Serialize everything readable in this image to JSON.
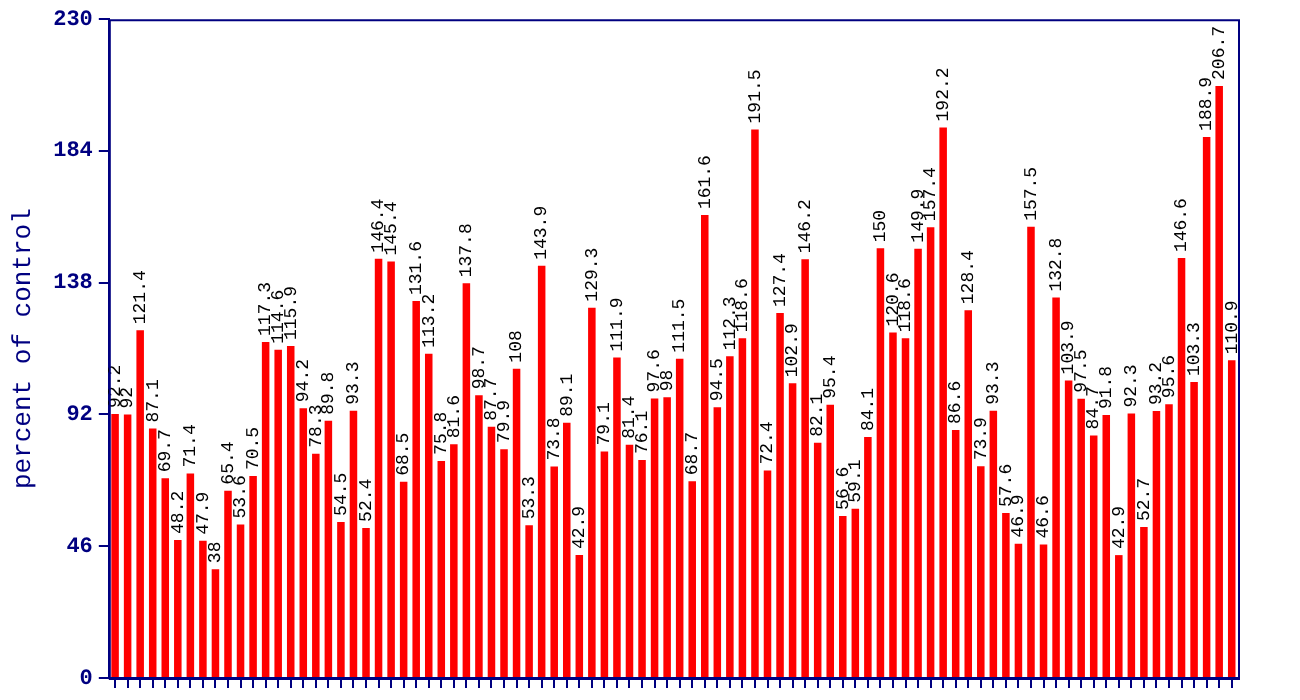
{
  "chart_data": {
    "type": "bar",
    "ylabel": "percent of control",
    "categories": [
      null,
      null,
      null,
      null,
      null,
      null,
      null,
      null,
      null,
      null,
      null,
      null,
      null,
      null,
      null,
      null,
      null,
      null,
      null,
      null,
      null,
      null,
      null,
      null,
      null,
      null,
      null,
      null,
      null,
      null,
      null,
      null,
      null,
      null,
      null,
      null,
      null,
      null,
      null,
      null,
      null,
      null,
      null,
      null,
      null,
      null,
      null,
      null,
      null,
      null,
      null,
      null,
      null,
      null,
      null,
      null,
      null,
      null,
      null,
      null,
      null,
      null,
      null,
      null,
      null,
      null,
      null,
      null,
      null,
      null,
      null,
      null,
      null,
      null,
      null,
      null,
      null,
      null,
      null,
      null,
      null,
      null,
      null,
      null,
      null,
      null,
      null,
      null,
      null,
      null
    ],
    "values": [
      92.2,
      92,
      121.4,
      87.1,
      69.7,
      48.2,
      71.4,
      47.9,
      38,
      65.4,
      53.6,
      70.5,
      117.3,
      114.6,
      115.9,
      94.2,
      78.3,
      89.8,
      54.5,
      93.3,
      52.4,
      146.4,
      145.4,
      68.5,
      131.6,
      113.2,
      75.8,
      81.6,
      137.8,
      98.7,
      87.7,
      79.9,
      108,
      53.3,
      143.9,
      73.8,
      89.1,
      42.9,
      129.3,
      79.1,
      111.9,
      81.4,
      76.1,
      97.6,
      98,
      111.5,
      68.7,
      161.6,
      94.5,
      112.3,
      118.6,
      191.5,
      72.4,
      127.4,
      102.9,
      146.2,
      82.1,
      95.4,
      56.6,
      59.1,
      84.1,
      150,
      120.6,
      118.6,
      149.9,
      157.4,
      192.2,
      86.6,
      128.4,
      73.9,
      93.3,
      57.6,
      46.9,
      157.5,
      46.6,
      132.8,
      103.9,
      97.5,
      84.7,
      91.8,
      42.9,
      92.3,
      52.7,
      93.2,
      95.6,
      146.6,
      103.3,
      188.9,
      206.7,
      110.9
    ],
    "color": "#ff0000",
    "ylim": [
      0,
      230
    ],
    "yticks": [
      0,
      46,
      92,
      138,
      184,
      230
    ],
    "grid": false,
    "data_labels": true
  }
}
